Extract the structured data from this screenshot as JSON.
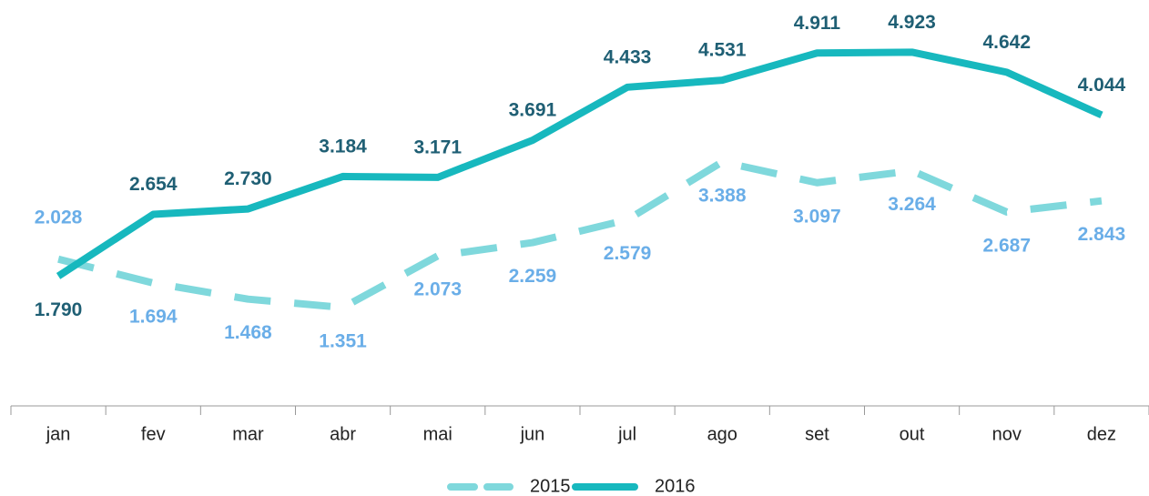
{
  "chart_data": {
    "type": "line",
    "categories": [
      "jan",
      "fev",
      "mar",
      "abr",
      "mai",
      "jun",
      "jul",
      "ago",
      "set",
      "out",
      "nov",
      "dez"
    ],
    "series": [
      {
        "name": "2015",
        "color": "#7fd8dc",
        "dashed": true,
        "label_color": "#6aaee8",
        "values": [
          2.028,
          1.694,
          1.468,
          1.351,
          2.073,
          2.259,
          2.579,
          3.388,
          3.097,
          3.264,
          2.687,
          2.843
        ],
        "value_labels": [
          "2.028",
          "1.694",
          "1.468",
          "1.351",
          "2.073",
          "2.259",
          "2.579",
          "3.388",
          "3.097",
          "3.264",
          "2.687",
          "2.843"
        ]
      },
      {
        "name": "2016",
        "color": "#17b8be",
        "dashed": false,
        "label_color": "#1f5f74",
        "values": [
          1.79,
          2.654,
          2.73,
          3.184,
          3.171,
          3.691,
          4.433,
          4.531,
          4.911,
          4.923,
          4.642,
          4.044
        ],
        "value_labels": [
          "1.790",
          "2.654",
          "2.730",
          "3.184",
          "3.171",
          "3.691",
          "4.433",
          "4.531",
          "4.911",
          "4.923",
          "4.642",
          "4.044"
        ]
      }
    ],
    "ylim": [
      0,
      5.5
    ],
    "legend": "bottom"
  }
}
